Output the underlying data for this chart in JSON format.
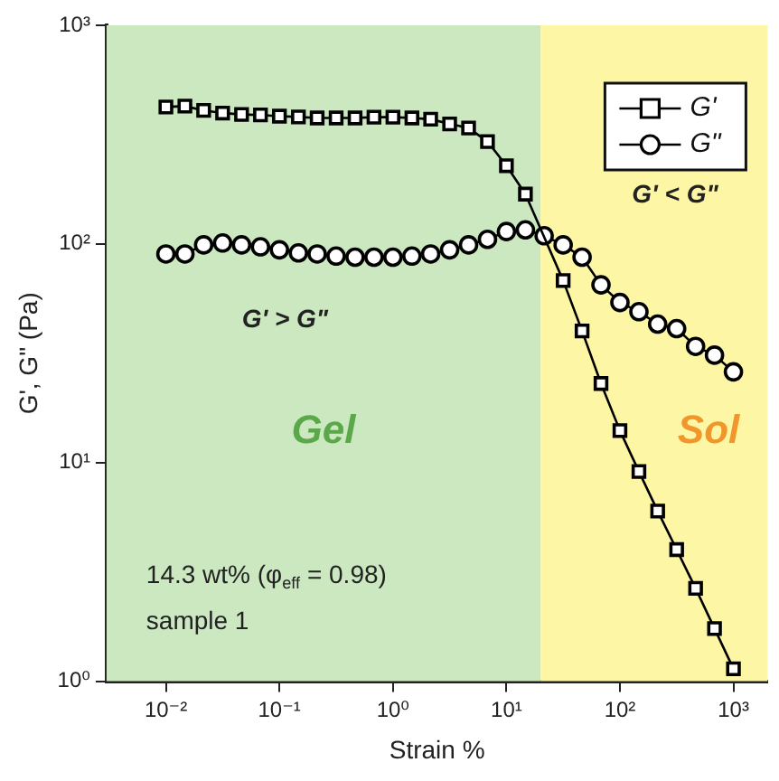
{
  "chart_data": {
    "type": "line",
    "xlabel": "Strain %",
    "ylabel": "G', G\" (Pa)",
    "log": "xy",
    "grid": false,
    "legend": "top right",
    "line_style": "solid",
    "x": [
      0.01,
      0.0147,
      0.0215,
      0.0316,
      0.0464,
      0.0681,
      0.1,
      0.147,
      0.215,
      0.316,
      0.464,
      0.681,
      1,
      1.47,
      2.15,
      3.16,
      4.64,
      6.81,
      10,
      14.7,
      21.5,
      31.6,
      46.4,
      68.1,
      100,
      147,
      215,
      316,
      464,
      681,
      1000
    ],
    "xlim": [
      0.003,
      2000
    ],
    "xticks": [
      {
        "value": 0.01,
        "label": "10⁻²"
      },
      {
        "value": 0.1,
        "label": "10⁻¹"
      },
      {
        "value": 1,
        "label": "10⁰"
      },
      {
        "value": 10,
        "label": "10¹"
      },
      {
        "value": 100,
        "label": "10²"
      },
      {
        "value": 1000,
        "label": "10³"
      }
    ],
    "ylim": [
      1,
      1000
    ],
    "yticks": [
      {
        "value": 1,
        "label": "10⁰"
      },
      {
        "value": 10,
        "label": "10¹"
      },
      {
        "value": 100,
        "label": "10²"
      },
      {
        "value": 1000,
        "label": "10³"
      }
    ],
    "series": [
      {
        "name": "G'",
        "color": "#000000",
        "marker": "square",
        "values": [
          423,
          427,
          408,
          397,
          391,
          389,
          384,
          381,
          377,
          377,
          377,
          380,
          380,
          377,
          372,
          354,
          339,
          294,
          228,
          169,
          null,
          68,
          40,
          23,
          14,
          9.1,
          6.0,
          4.0,
          2.66,
          1.74,
          1.14
        ]
      },
      {
        "name": "G\"",
        "color": "#000000",
        "marker": "circle",
        "values": [
          90,
          90,
          99,
          101,
          99,
          97,
          94,
          91,
          90,
          88,
          87,
          87,
          87,
          88,
          90,
          94,
          99,
          105,
          114,
          116,
          109,
          99,
          87,
          65,
          54,
          49,
          43,
          41,
          34,
          31,
          26
        ]
      }
    ],
    "bands": [
      {
        "axis": "x",
        "from": 0.003,
        "to": 20,
        "label": "Gel",
        "color": "#cbe8c0"
      },
      {
        "axis": "x",
        "from": 20,
        "to": 2000,
        "label": "Sol",
        "color": "#fdf6a4"
      }
    ],
    "annotations": [
      "G' > G\"",
      "G' < G\"",
      "14.3 wt% (φ$_{eff}$ = 0.98)",
      "sample 1"
    ]
  }
}
